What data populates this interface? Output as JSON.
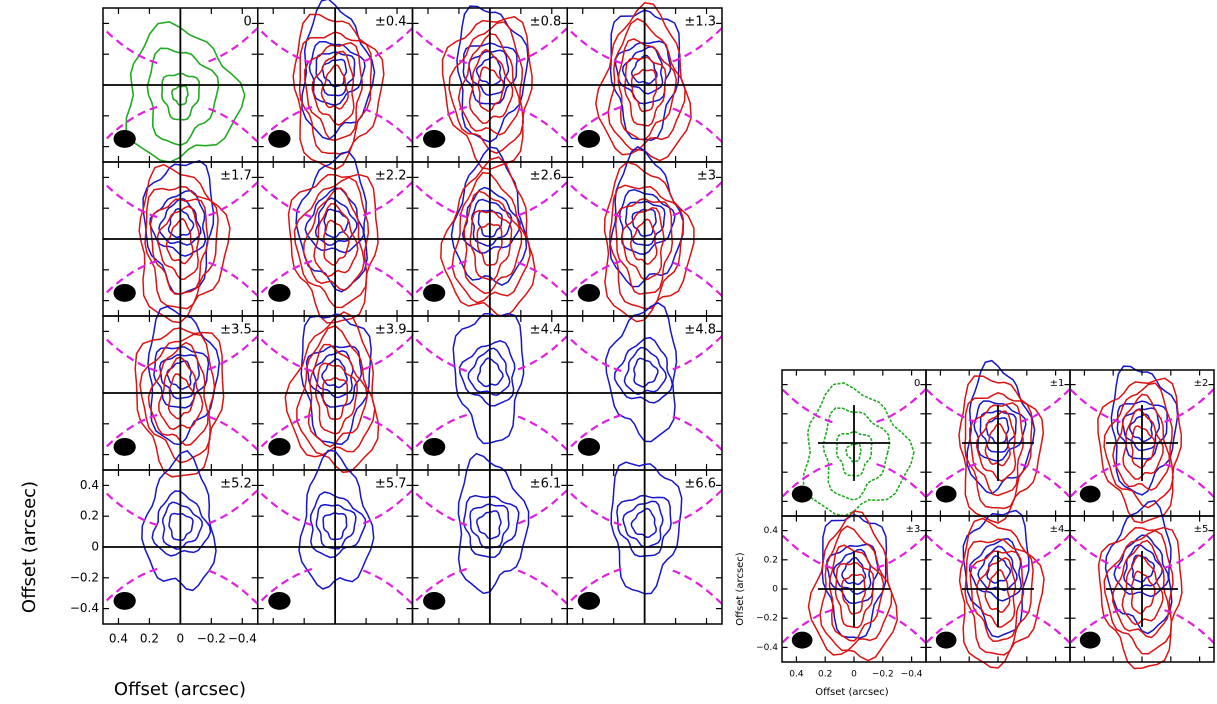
{
  "chart_data": [
    {
      "type": "channel_map",
      "panels": [
        "0",
        "±0.4",
        "±0.8",
        "±1.3",
        "±1.7",
        "±2.2",
        "±2.6",
        "±3",
        "±3.5",
        "±3.9",
        "±4.4",
        "±4.8",
        "±5.2",
        "±5.7",
        "±6.1",
        "±6.6"
      ],
      "xlabel": "Offset (arcsec)",
      "ylabel": "Offset (arcsec)",
      "xlim": [
        0.5,
        -0.5
      ],
      "ylim": [
        -0.5,
        0.5
      ],
      "xticks": [
        0.4,
        0.2,
        0,
        {
          "value": -0.2,
          "label": "−0.2"
        },
        {
          "value": -0.4,
          "label": "−0.4"
        }
      ],
      "yticks": [
        {
          "value": -0.4,
          "label": "−0.4"
        },
        {
          "value": -0.2,
          "label": "−0.2"
        },
        0,
        0.2,
        0.4
      ]
    },
    {
      "type": "channel_map",
      "panels": [
        "0",
        "±1",
        "±2",
        "±3",
        "±4",
        "±5"
      ],
      "xlabel": "Offset (arcsec)",
      "ylabel": "Offset (arcsec)",
      "xlim": [
        0.5,
        -0.5
      ],
      "ylim": [
        -0.5,
        0.5
      ],
      "xticks": [
        0.4,
        0.2,
        0,
        {
          "value": -0.2,
          "label": "−0.2"
        },
        {
          "value": -0.4,
          "label": "−0.4"
        }
      ],
      "yticks": [
        {
          "value": -0.4,
          "label": "−0.4"
        },
        {
          "value": -0.2,
          "label": "−0.2"
        },
        0,
        0.2,
        0.4
      ]
    }
  ]
}
